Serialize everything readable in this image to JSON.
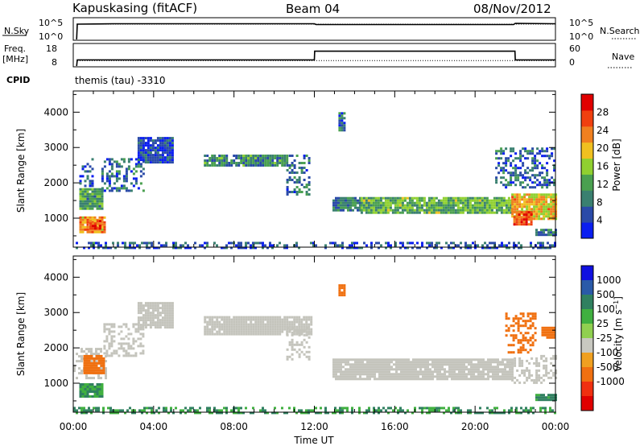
{
  "header": {
    "station": "Kapuskasing (fitACF)",
    "beam": "Beam 04",
    "date": "08/Nov/2012"
  },
  "noise_panel": {
    "left_label": "N.Sky",
    "left_ticks": [
      "10^5",
      "10^0"
    ],
    "right_label": "N.Search",
    "right_ticks": [
      "10^5",
      "10^0"
    ]
  },
  "freq_panel": {
    "left_label_1": "Freq.",
    "left_label_2": "[MHz]",
    "left_ticks": [
      "18",
      "8"
    ],
    "right_label": "Nave",
    "right_ticks": [
      "60",
      "0"
    ],
    "cpid_label": "CPID",
    "cpid_value": "themis (tau) -3310"
  },
  "colors": {
    "power_scale": [
      "#0a1ef0",
      "#2a4aa8",
      "#3a8070",
      "#4aa050",
      "#90d030",
      "#f0c020",
      "#f08020",
      "#f04010",
      "#e00000"
    ],
    "velocity_scale": [
      "#1010e0",
      "#2a5aa8",
      "#308060",
      "#40b040",
      "#90d050",
      "#c8c8c0",
      "#f0a020",
      "#f07010",
      "#f03010",
      "#e00000"
    ],
    "ground_scatter": "#c4c4bc"
  },
  "chart_data": [
    {
      "type": "line",
      "title": "",
      "series": [
        {
          "name": "N.Sky",
          "x": [
            "00:10",
            "00:12",
            "02:00",
            "12:00",
            "12:05",
            "21:55",
            "22:00",
            "24:00"
          ],
          "log10_y": [
            0,
            3.8,
            3.9,
            3.9,
            3.7,
            3.7,
            4.0,
            3.9
          ]
        },
        {
          "name": "N.Search",
          "x": [
            "00:10",
            "24:00"
          ],
          "log10_y": [
            3.8,
            3.8
          ]
        }
      ],
      "ylim_log10": [
        0,
        5
      ]
    },
    {
      "type": "line",
      "series": [
        {
          "name": "Freq. [MHz]",
          "x": [
            "00:10",
            "00:12",
            "12:00",
            "12:01",
            "21:59",
            "22:00",
            "24:00"
          ],
          "y": [
            8,
            10.8,
            10.8,
            14.8,
            14.8,
            10.8,
            10.8
          ]
        },
        {
          "name": "Nave",
          "x": [
            "00:12",
            "24:00"
          ],
          "y": [
            15,
            15
          ]
        }
      ],
      "ylim": [
        8,
        18
      ],
      "ylim_right": [
        0,
        60
      ]
    },
    {
      "type": "heatmap",
      "panel": "power",
      "ylabel": "Slant Range [km]",
      "xlabel": "Time UT",
      "x_ticks": [
        "00:00",
        "04:00",
        "08:00",
        "12:00",
        "16:00",
        "20:00",
        "00:00"
      ],
      "xlim_hours": [
        0,
        24
      ],
      "y_ticks": [
        "1000",
        "2000",
        "3000",
        "4000"
      ],
      "ylim": [
        180,
        4600
      ],
      "colorbar": {
        "label": "Power [dB]",
        "ticks": [
          "4",
          "8",
          "12",
          "16",
          "20",
          "24",
          "28"
        ],
        "range": [
          0,
          32
        ]
      },
      "regions": [
        {
          "t": [
            0.3,
            1.5
          ],
          "r": [
            1250,
            1850
          ],
          "v": 12
        },
        {
          "t": [
            0.3,
            1.6
          ],
          "r": [
            600,
            1050
          ],
          "v": 22
        },
        {
          "t": [
            0.8,
            1.3
          ],
          "r": [
            700,
            950
          ],
          "v": 28
        },
        {
          "t": [
            0.3,
            1.0
          ],
          "r": [
            1900,
            2700
          ],
          "v": 6
        },
        {
          "t": [
            1.4,
            3.5
          ],
          "r": [
            1800,
            2700
          ],
          "v": 7
        },
        {
          "t": [
            3.2,
            5.0
          ],
          "r": [
            2600,
            3300
          ],
          "v": 5
        },
        {
          "t": [
            6.5,
            10.6
          ],
          "r": [
            2500,
            2800
          ],
          "v": 10
        },
        {
          "t": [
            10.6,
            11.8
          ],
          "r": [
            1700,
            2800
          ],
          "v": 8
        },
        {
          "t": [
            13.2,
            13.5
          ],
          "r": [
            3500,
            4000
          ],
          "v": 8
        },
        {
          "t": [
            12.9,
            14.3
          ],
          "r": [
            1200,
            1600
          ],
          "v": 9
        },
        {
          "t": [
            14.3,
            21.8
          ],
          "r": [
            1150,
            1600
          ],
          "v": 13
        },
        {
          "t": [
            21.8,
            24.0
          ],
          "r": [
            1000,
            1700
          ],
          "v": 20
        },
        {
          "t": [
            21.9,
            22.8
          ],
          "r": [
            800,
            1200
          ],
          "v": 26
        },
        {
          "t": [
            21.0,
            24.0
          ],
          "r": [
            1900,
            3000
          ],
          "v": 7
        },
        {
          "t": [
            0.0,
            24.0
          ],
          "r": [
            180,
            330
          ],
          "v": 6
        },
        {
          "t": [
            23.0,
            24.0
          ],
          "r": [
            550,
            700
          ],
          "v": 8
        }
      ]
    },
    {
      "type": "heatmap",
      "panel": "velocity",
      "ylabel": "Slant Range [km]",
      "xlabel": "Time UT",
      "x_ticks": [
        "00:00",
        "04:00",
        "08:00",
        "12:00",
        "16:00",
        "20:00",
        "00:00"
      ],
      "y_ticks": [
        "1000",
        "2000",
        "3000",
        "4000"
      ],
      "ylim": [
        180,
        4600
      ],
      "colorbar": {
        "label": "Velocity [m s^-1]",
        "ticks": [
          "1000",
          "500",
          "100",
          "25",
          "-25",
          "-100",
          "-500",
          "-1000"
        ]
      },
      "regions": [
        {
          "t": [
            0.0,
            1.6
          ],
          "r": [
            1150,
            2000
          ],
          "g": true
        },
        {
          "t": [
            0.5,
            1.5
          ],
          "r": [
            1300,
            1800
          ],
          "v": -150
        },
        {
          "t": [
            0.3,
            1.5
          ],
          "r": [
            600,
            1000
          ],
          "v": 60
        },
        {
          "t": [
            1.5,
            3.5
          ],
          "r": [
            1800,
            2700
          ],
          "g": true
        },
        {
          "t": [
            3.2,
            5.0
          ],
          "r": [
            2600,
            3300
          ],
          "g": true
        },
        {
          "t": [
            6.5,
            11.8
          ],
          "r": [
            2400,
            2900
          ],
          "g": true
        },
        {
          "t": [
            10.6,
            11.8
          ],
          "r": [
            1700,
            2600
          ],
          "g": true
        },
        {
          "t": [
            12.9,
            21.8
          ],
          "r": [
            1150,
            1700
          ],
          "g": true
        },
        {
          "t": [
            21.8,
            24.0
          ],
          "r": [
            1000,
            1800
          ],
          "g": true
        },
        {
          "t": [
            23.3,
            24.0
          ],
          "r": [
            2300,
            2600
          ],
          "v": -150
        },
        {
          "t": [
            21.5,
            23.0
          ],
          "r": [
            1900,
            3000
          ],
          "v": -100
        },
        {
          "t": [
            13.2,
            13.5
          ],
          "r": [
            3500,
            3800
          ],
          "v": -200
        },
        {
          "t": [
            0.0,
            24.0
          ],
          "r": [
            180,
            330
          ],
          "v": 60
        },
        {
          "t": [
            23.0,
            24.0
          ],
          "r": [
            550,
            700
          ],
          "v": 80
        }
      ]
    }
  ]
}
